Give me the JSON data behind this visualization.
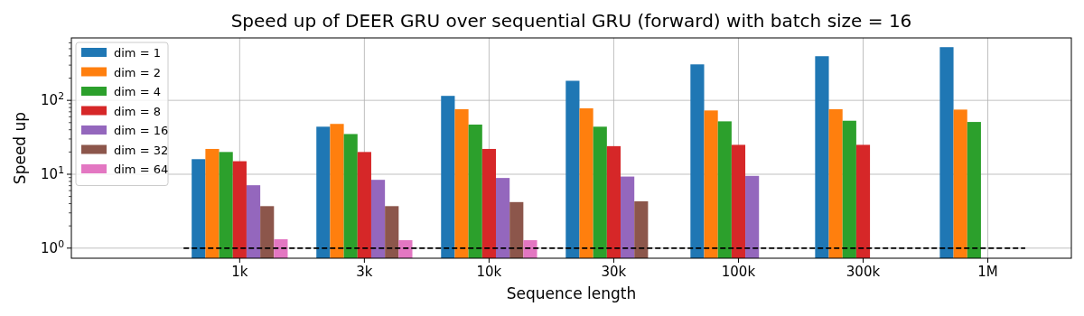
{
  "chart_data": {
    "type": "bar",
    "title": "Speed up of DEER GRU over sequential GRU (forward) with batch size = 16",
    "xlabel": "Sequence length",
    "ylabel": "Speed up",
    "categories": [
      "1k",
      "3k",
      "10k",
      "30k",
      "100k",
      "300k",
      "1M"
    ],
    "series": [
      {
        "name": "dim = 1",
        "color": "#1f77b4",
        "values": [
          16,
          44,
          115,
          184,
          307,
          396,
          525
        ]
      },
      {
        "name": "dim = 2",
        "color": "#ff7f0e",
        "values": [
          22,
          48,
          76,
          78,
          73,
          76,
          75
        ]
      },
      {
        "name": "dim = 4",
        "color": "#2ca02c",
        "values": [
          20,
          35,
          47,
          44,
          52,
          53,
          51
        ]
      },
      {
        "name": "dim = 8",
        "color": "#d62728",
        "values": [
          15,
          20,
          22,
          24,
          25,
          25,
          null
        ]
      },
      {
        "name": "dim = 16",
        "color": "#9467bd",
        "values": [
          7.1,
          8.4,
          8.9,
          9.3,
          9.5,
          null,
          null
        ]
      },
      {
        "name": "dim = 32",
        "color": "#8c564b",
        "values": [
          3.7,
          3.7,
          4.2,
          4.3,
          null,
          null,
          null
        ]
      },
      {
        "name": "dim = 64",
        "color": "#e377c2",
        "values": [
          1.32,
          1.28,
          1.28,
          null,
          null,
          null,
          null
        ]
      }
    ],
    "log": "y",
    "ylim": [
      0.73,
      700
    ],
    "yticks": [
      {
        "value": 1,
        "label": "10$^{0}$"
      },
      {
        "value": 10,
        "label": "10$^{1}$"
      },
      {
        "value": 100,
        "label": "10$^{2}$"
      },
      {
        "value": 2,
        "label": null
      },
      {
        "value": 3,
        "label": null
      },
      {
        "value": 4,
        "label": null
      },
      {
        "value": 5,
        "label": null
      },
      {
        "value": 6,
        "label": null
      },
      {
        "value": 7,
        "label": null
      },
      {
        "value": 8,
        "label": null
      },
      {
        "value": 9,
        "label": null
      },
      {
        "value": 20,
        "label": null
      },
      {
        "value": 30,
        "label": null
      },
      {
        "value": 40,
        "label": null
      },
      {
        "value": 50,
        "label": null
      },
      {
        "value": 60,
        "label": null
      },
      {
        "value": 70,
        "label": null
      },
      {
        "value": 80,
        "label": null
      },
      {
        "value": 90,
        "label": null
      },
      {
        "value": 200,
        "label": null
      },
      {
        "value": 300,
        "label": null
      },
      {
        "value": 400,
        "label": null
      },
      {
        "value": 500,
        "label": null
      },
      {
        "value": 600,
        "label": null
      }
    ],
    "ref_lines": [
      {
        "axis": "y",
        "value": 1,
        "color": "#000000",
        "line_style": "dashed"
      }
    ],
    "grid": true,
    "legend": "top left"
  }
}
